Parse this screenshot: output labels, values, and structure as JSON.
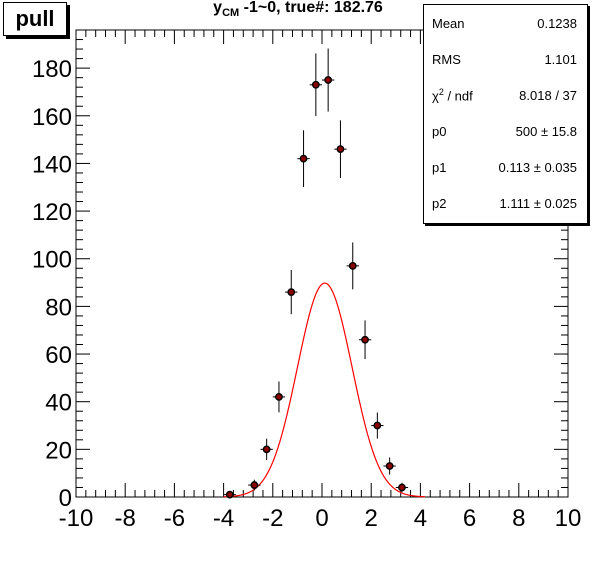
{
  "pull_label": "pull",
  "title": {
    "main": "y",
    "sub": "CM",
    "rest": " -1~0, true#: 182.76"
  },
  "stats": {
    "rows": [
      {
        "name": "Mean",
        "value": "0.1238"
      },
      {
        "name": "RMS",
        "value": "1.101"
      },
      {
        "name": "χ",
        "sup": "2",
        "after": " / ndf",
        "value": "8.018 / 37"
      },
      {
        "name": "p0",
        "value": "500 ± 15.8"
      },
      {
        "name": "p1",
        "value": "0.113 ± 0.035"
      },
      {
        "name": "p2",
        "value": "1.111 ± 0.025"
      }
    ]
  },
  "colors": {
    "fit": "#ff0000",
    "marker": "#000000",
    "marker_fill": "#8b0000"
  },
  "chart_data": {
    "type": "scatter",
    "title": "y_CM -1~0, true#: 182.76",
    "xlabel": "",
    "ylabel": "",
    "xlim": [
      -10,
      10
    ],
    "ylim": [
      0,
      196
    ],
    "x_tick_labels": [
      "-10",
      "-8",
      "-6",
      "-4",
      "-2",
      "0",
      "2",
      "4",
      "6",
      "8",
      "10"
    ],
    "y_tick_labels": [
      "0",
      "20",
      "40",
      "60",
      "80",
      "100",
      "120",
      "140",
      "160",
      "180"
    ],
    "x_ticks": [
      -10,
      -8,
      -6,
      -4,
      -2,
      0,
      2,
      4,
      6,
      8,
      10
    ],
    "y_ticks": [
      0,
      20,
      40,
      60,
      80,
      100,
      120,
      140,
      160,
      180
    ],
    "grid": false,
    "bin_half_width": 0.25,
    "points": [
      {
        "x": -3.75,
        "y": 1
      },
      {
        "x": -2.75,
        "y": 5
      },
      {
        "x": -2.25,
        "y": 20
      },
      {
        "x": -1.75,
        "y": 42
      },
      {
        "x": -1.25,
        "y": 86
      },
      {
        "x": -0.75,
        "y": 142
      },
      {
        "x": -0.25,
        "y": 173
      },
      {
        "x": 0.25,
        "y": 175
      },
      {
        "x": 0.75,
        "y": 146
      },
      {
        "x": 1.25,
        "y": 97
      },
      {
        "x": 1.75,
        "y": 66
      },
      {
        "x": 2.25,
        "y": 30
      },
      {
        "x": 2.75,
        "y": 13
      },
      {
        "x": 3.25,
        "y": 4
      }
    ],
    "fit": {
      "function": "gaussian",
      "p0": 500,
      "p1": 0.113,
      "p2": 1.111,
      "bin_width": 0.5
    }
  }
}
